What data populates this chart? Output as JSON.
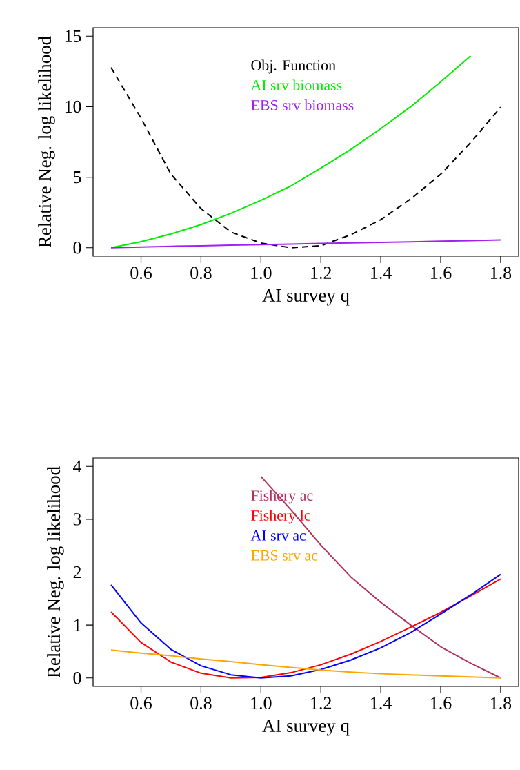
{
  "chart_data": [
    {
      "type": "line",
      "xlabel": "AI survey q",
      "ylabel": "Relative Neg. log likelihood",
      "x": [
        0.5,
        0.6,
        0.7,
        0.8,
        0.9,
        1.0,
        1.1,
        1.2,
        1.3,
        1.4,
        1.5,
        1.6,
        1.7,
        1.8
      ],
      "xlim": [
        0.44,
        1.86
      ],
      "ylim": [
        -0.6,
        15.6
      ],
      "xticks": [
        0.6,
        0.8,
        {
          "value": 1,
          "label": "1.0"
        },
        1.2,
        1.4,
        1.6,
        1.8
      ],
      "yticks": [
        0,
        5,
        10,
        15
      ],
      "legend": "top",
      "grid": false,
      "series": [
        {
          "name": "Obj. Function",
          "color": "#000000",
          "line_style": "dashed",
          "values": [
            12.77,
            9.18,
            5.21,
            2.77,
            1.11,
            0.33,
            0,
            0.14,
            0.92,
            1.99,
            3.46,
            5.21,
            7.46,
            9.96
          ]
        },
        {
          "name": "AI srv biomass",
          "color": "#00ee00",
          "line_style": "solid",
          "values": [
            0,
            0.43,
            0.98,
            1.64,
            2.44,
            3.36,
            4.38,
            5.65,
            6.97,
            8.44,
            10.0,
            11.76,
            13.6,
            null
          ]
        },
        {
          "name": "EBS srv biomass",
          "color": "#a020f0",
          "line_style": "solid",
          "values": [
            0,
            0.05,
            0.1,
            0.14,
            0.18,
            0.22,
            0.26,
            0.3,
            0.34,
            0.38,
            0.42,
            0.46,
            0.5,
            0.55
          ]
        }
      ]
    },
    {
      "type": "line",
      "xlabel": "AI survey q",
      "ylabel": "Relative Neg. log likelihood",
      "x": [
        0.5,
        0.6,
        0.7,
        0.8,
        0.9,
        1.0,
        1.1,
        1.2,
        1.3,
        1.4,
        1.5,
        1.6,
        1.7,
        1.8
      ],
      "xlim": [
        0.44,
        1.86
      ],
      "ylim": [
        -0.16,
        4.16
      ],
      "xticks": [
        0.6,
        0.8,
        {
          "value": 1,
          "label": "1.0"
        },
        1.2,
        1.4,
        1.6,
        1.8
      ],
      "yticks": [
        0,
        1,
        2,
        3,
        4
      ],
      "legend": "top",
      "grid": false,
      "series": [
        {
          "name": "Fishery ac",
          "color": "#b03060",
          "line_style": "solid",
          "values": [
            null,
            null,
            null,
            null,
            null,
            3.81,
            3.18,
            2.51,
            1.91,
            1.43,
            1.0,
            0.59,
            0.28,
            0
          ]
        },
        {
          "name": "Fishery lc",
          "color": "#ff0000",
          "line_style": "solid",
          "values": [
            1.25,
            0.67,
            0.3,
            0.09,
            0,
            0.01,
            0.1,
            0.25,
            0.45,
            0.69,
            0.96,
            1.24,
            1.55,
            1.87
          ]
        },
        {
          "name": "AI srv ac",
          "color": "#0000ff",
          "line_style": "solid",
          "values": [
            1.76,
            1.04,
            0.54,
            0.23,
            0.06,
            0,
            0.04,
            0.16,
            0.34,
            0.57,
            0.86,
            1.21,
            1.57,
            1.96
          ]
        },
        {
          "name": "EBS srv ac",
          "color": "#ffa500",
          "line_style": "solid",
          "values": [
            0.53,
            0.47,
            0.42,
            0.36,
            0.31,
            0.25,
            0.2,
            0.15,
            0.11,
            0.08,
            0.06,
            0.04,
            0.02,
            0
          ]
        }
      ]
    }
  ]
}
